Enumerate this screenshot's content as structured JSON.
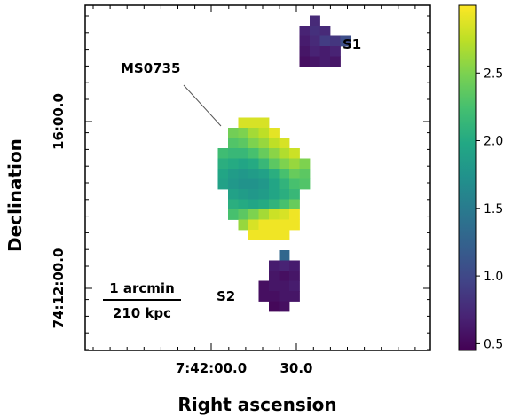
{
  "chart_data": {
    "type": "heatmap",
    "xlabel": "Right ascension",
    "ylabel": "Declination",
    "x_ticks": [
      "7:42:00.0",
      "30.0"
    ],
    "y_ticks": [
      "74:12:00.0",
      "16:00.0"
    ],
    "colorbar": {
      "range": [
        0.45,
        3.0
      ],
      "ticks": [
        "0.5",
        "1.0",
        "1.5",
        "2.0",
        "2.5"
      ],
      "colormap": "viridis"
    },
    "annotations": {
      "main": "MS0735",
      "source1": "S1",
      "source2": "S2"
    },
    "scalebar": {
      "top": "1 arcmin",
      "bottom": "210 kpc"
    },
    "regions": [
      {
        "label": "MS0735",
        "col0": 13,
        "row0": 11,
        "rows": [
          [
            null,
            null,
            2.85,
            2.85,
            2.85,
            null,
            null,
            null,
            null
          ],
          [
            null,
            2.45,
            2.5,
            2.65,
            2.75,
            2.9,
            null,
            null,
            null
          ],
          [
            null,
            2.3,
            2.35,
            2.5,
            2.6,
            2.75,
            2.85,
            null,
            null
          ],
          [
            2.2,
            2.15,
            2.15,
            2.25,
            2.4,
            2.55,
            2.7,
            2.8,
            null
          ],
          [
            2.05,
            2.0,
            1.95,
            2.0,
            2.15,
            2.35,
            2.5,
            2.6,
            2.5
          ],
          [
            1.95,
            1.85,
            1.8,
            1.85,
            1.9,
            2.05,
            2.25,
            2.4,
            2.35
          ],
          [
            1.9,
            1.8,
            1.75,
            1.75,
            1.8,
            1.95,
            2.1,
            2.25,
            2.3
          ],
          [
            null,
            1.9,
            1.85,
            1.8,
            1.85,
            1.95,
            2.05,
            2.15,
            null
          ],
          [
            null,
            2.05,
            2.0,
            1.95,
            2.0,
            2.1,
            2.25,
            2.4,
            null
          ],
          [
            null,
            2.25,
            2.35,
            2.5,
            2.65,
            2.8,
            2.85,
            2.95,
            null
          ],
          [
            null,
            null,
            2.6,
            2.85,
            2.95,
            2.95,
            2.95,
            2.95,
            null
          ],
          [
            null,
            null,
            null,
            2.95,
            2.95,
            2.95,
            2.95,
            null,
            null
          ]
        ]
      },
      {
        "label": "S1",
        "col0": 21,
        "row0": 1,
        "rows": [
          [
            null,
            0.75,
            null,
            null,
            null
          ],
          [
            0.7,
            0.8,
            0.75,
            null,
            null
          ],
          [
            0.65,
            0.75,
            0.9,
            0.85,
            1.05
          ],
          [
            0.6,
            0.7,
            0.65,
            0.7,
            null
          ],
          [
            0.55,
            0.6,
            0.65,
            0.6,
            null
          ]
        ]
      },
      {
        "label": "S2",
        "col0": 17,
        "row0": 24,
        "rows": [
          [
            null,
            null,
            1.3,
            null,
            null
          ],
          [
            null,
            0.65,
            0.7,
            0.65,
            null
          ],
          [
            null,
            0.6,
            0.55,
            0.6,
            null
          ],
          [
            0.55,
            0.6,
            0.6,
            0.65,
            null
          ],
          [
            0.55,
            0.55,
            0.6,
            0.6,
            null
          ],
          [
            null,
            0.5,
            0.55,
            null,
            null
          ]
        ]
      }
    ]
  }
}
